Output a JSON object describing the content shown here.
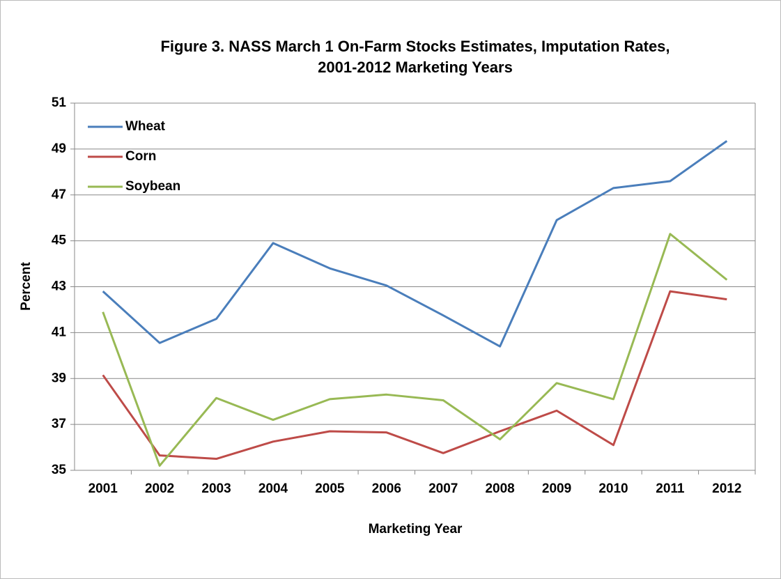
{
  "chart_data": {
    "type": "line",
    "title": [
      "Figure 3. NASS March 1 On-Farm Stocks Estimates, Imputation Rates,",
      "2001-2012 Marketing Years"
    ],
    "x_label": "Marketing Year",
    "y_label": "Percent",
    "categories": [
      "2001",
      "2002",
      "2003",
      "2004",
      "2005",
      "2006",
      "2007",
      "2008",
      "2009",
      "2010",
      "2011",
      "2012"
    ],
    "series": [
      {
        "name": "Wheat",
        "color": "#4a7ebb",
        "values": [
          42.8,
          40.55,
          41.6,
          44.9,
          43.8,
          43.05,
          41.75,
          40.4,
          45.9,
          47.3,
          47.6,
          49.35
        ]
      },
      {
        "name": "Corn",
        "color": "#be4b48",
        "values": [
          39.15,
          35.65,
          35.5,
          36.25,
          36.7,
          36.65,
          35.75,
          36.7,
          37.6,
          36.1,
          42.8,
          42.45
        ]
      },
      {
        "name": "Soybean",
        "color": "#98b954",
        "values": [
          41.9,
          35.2,
          38.15,
          37.2,
          38.1,
          38.3,
          38.05,
          36.35,
          38.8,
          38.1,
          45.3,
          43.3
        ]
      }
    ],
    "ylim": [
      35,
      51
    ],
    "yticks": [
      35,
      37,
      39,
      41,
      43,
      45,
      47,
      49,
      51
    ],
    "grid": true,
    "legend": "upper-left"
  }
}
